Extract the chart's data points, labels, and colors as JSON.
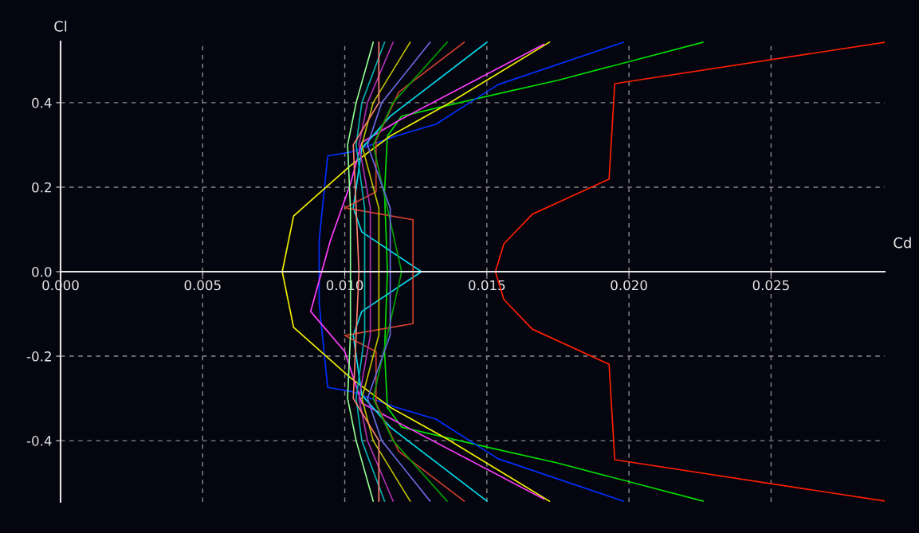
{
  "chart_data": {
    "type": "line",
    "xlabel": "Cd",
    "ylabel": "Cl",
    "xlim": [
      0,
      0.029
    ],
    "ylim": [
      -0.545,
      0.545
    ],
    "xticks": [
      {
        "value": 0,
        "label": "0.000"
      },
      {
        "value": 0.005,
        "label": "0.005"
      },
      {
        "value": 0.01,
        "label": "0.010"
      },
      {
        "value": 0.015,
        "label": "0.015"
      },
      {
        "value": 0.02,
        "label": "0.020"
      },
      {
        "value": 0.025,
        "label": "0.025"
      }
    ],
    "yticks": [
      {
        "value": -0.4,
        "label": "-0.4"
      },
      {
        "value": -0.2,
        "label": "-0.2"
      },
      {
        "value": 0,
        "label": "0.0"
      },
      {
        "value": 0.2,
        "label": "0.2"
      },
      {
        "value": 0.4,
        "label": "0.4"
      }
    ],
    "grid": true,
    "marker": "none",
    "line_style": "solid",
    "series": [
      {
        "color": "#ff2000",
        "x": [
          0.029,
          0.0195,
          0.0193,
          0.0166,
          0.0156,
          0.0153,
          0.0156,
          0.0166,
          0.0193,
          0.0195,
          0.029
        ],
        "values": [
          -0.543,
          -0.445,
          -0.219,
          -0.136,
          -0.066,
          0,
          0.066,
          0.136,
          0.219,
          0.445,
          0.543
        ]
      },
      {
        "color": "#00e000",
        "x": [
          0.0226,
          0.0175,
          0.015,
          0.012,
          0.0115,
          0.0114,
          0.0115,
          0.0114,
          0.0115,
          0.012,
          0.015,
          0.0175,
          0.0226
        ],
        "values": [
          -0.543,
          -0.453,
          -0.415,
          -0.368,
          -0.321,
          -0.189,
          0,
          0.189,
          0.321,
          0.368,
          0.415,
          0.453,
          0.543
        ]
      },
      {
        "color": "#0030ff",
        "x": [
          0.0198,
          0.0154,
          0.0132,
          0.0118,
          0.0102,
          0.0094,
          0.0091,
          0.0091,
          0.0091,
          0.0094,
          0.0102,
          0.0118,
          0.0132,
          0.0154,
          0.0198
        ],
        "values": [
          -0.543,
          -0.443,
          -0.349,
          -0.321,
          -0.283,
          -0.274,
          -0.075,
          0,
          0.075,
          0.274,
          0.283,
          0.321,
          0.349,
          0.443,
          0.543
        ]
      },
      {
        "color": "#f0f000",
        "x": [
          0.0172,
          0.0136,
          0.0116,
          0.0102,
          0.0082,
          0.0078,
          0.0082,
          0.0102,
          0.0116,
          0.0136,
          0.0172
        ],
        "values": [
          -0.543,
          -0.396,
          -0.321,
          -0.251,
          -0.132,
          0,
          0.132,
          0.251,
          0.321,
          0.396,
          0.543
        ]
      },
      {
        "color": "#ff40ff",
        "x": [
          0.017,
          0.0119,
          0.0106,
          0.01,
          0.0088,
          0.0095,
          0.0102,
          0.0106,
          0.0119,
          0.017
        ],
        "values": [
          -0.538,
          -0.358,
          -0.311,
          -0.189,
          -0.094,
          0.075,
          0.208,
          0.306,
          0.358,
          0.538
        ]
      },
      {
        "color": "#00e0f0",
        "x": [
          0.015,
          0.0116,
          0.0106,
          0.0103,
          0.0106,
          0.0127,
          0.0106,
          0.0103,
          0.0106,
          0.0116,
          0.015
        ],
        "values": [
          -0.543,
          -0.368,
          -0.292,
          -0.151,
          -0.094,
          0,
          0.094,
          0.151,
          0.292,
          0.368,
          0.543
        ]
      },
      {
        "color": "#d04030",
        "x": [
          0.0142,
          0.0119,
          0.0111,
          0.0111,
          0.01,
          0.0124,
          0.0124,
          0.0124,
          0.01,
          0.0111,
          0.0111,
          0.0119,
          0.0142
        ],
        "values": [
          -0.543,
          -0.425,
          -0.311,
          -0.189,
          -0.151,
          -0.123,
          0,
          0.123,
          0.151,
          0.189,
          0.311,
          0.425,
          0.543
        ]
      },
      {
        "color": "#00a000",
        "x": [
          0.0136,
          0.0117,
          0.011,
          0.0115,
          0.012,
          0.0115,
          0.011,
          0.0117,
          0.0136
        ],
        "values": [
          -0.543,
          -0.4,
          -0.3,
          -0.15,
          0,
          0.15,
          0.3,
          0.4,
          0.543
        ]
      },
      {
        "color": "#6a6ae0",
        "x": [
          0.013,
          0.0113,
          0.0108,
          0.0116,
          0.0116,
          0.0116,
          0.0108,
          0.0113,
          0.013
        ],
        "values": [
          -0.543,
          -0.4,
          -0.3,
          -0.15,
          0,
          0.15,
          0.3,
          0.4,
          0.543
        ]
      },
      {
        "color": "#c0c000",
        "x": [
          0.0123,
          0.011,
          0.0106,
          0.0112,
          0.0112,
          0.0112,
          0.0106,
          0.011,
          0.0123
        ],
        "values": [
          -0.543,
          -0.4,
          -0.3,
          -0.15,
          0,
          0.15,
          0.3,
          0.4,
          0.543
        ]
      },
      {
        "color": "#b030b0",
        "x": [
          0.0117,
          0.0108,
          0.0105,
          0.0109,
          0.0109,
          0.0109,
          0.0105,
          0.0108,
          0.0117
        ],
        "values": [
          -0.543,
          -0.4,
          -0.3,
          -0.15,
          0,
          0.15,
          0.3,
          0.4,
          0.543
        ]
      },
      {
        "color": "#00b0b0",
        "x": [
          0.0114,
          0.0106,
          0.0104,
          0.0107,
          0.0107,
          0.0107,
          0.0104,
          0.0106,
          0.0114
        ],
        "values": [
          -0.543,
          -0.4,
          -0.3,
          -0.15,
          0,
          0.15,
          0.3,
          0.4,
          0.543
        ]
      },
      {
        "color": "#ff8070",
        "x": [
          0.0112,
          0.0112,
          0.0103,
          0.0104,
          0.0105,
          0.0104,
          0.0103,
          0.0112,
          0.0112
        ],
        "values": [
          -0.543,
          -0.4,
          -0.3,
          -0.15,
          0,
          0.15,
          0.3,
          0.4,
          0.543
        ]
      },
      {
        "color": "#90ff90",
        "x": [
          0.011,
          0.0104,
          0.0101,
          0.0102,
          0.0102,
          0.0102,
          0.0101,
          0.0104,
          0.011
        ],
        "values": [
          -0.543,
          -0.4,
          -0.3,
          -0.15,
          0,
          0.15,
          0.3,
          0.4,
          0.543
        ]
      }
    ]
  }
}
